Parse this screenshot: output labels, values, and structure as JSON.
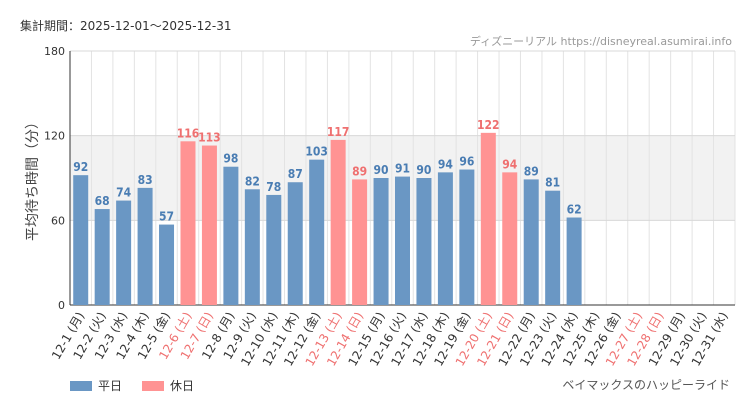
{
  "header": {
    "period": "集計期間：2025-12-01〜2025-12-31",
    "credit": "ディズニーリアル https://disneyreal.asumirai.info"
  },
  "footer": {
    "attraction": "ベイマックスのハッピーライド"
  },
  "legend": {
    "weekday_label": "平日",
    "holiday_label": "休日"
  },
  "colors": {
    "weekday": "#6a97c4",
    "holiday": "#ff9393",
    "weekday_text": "#4a7db3",
    "holiday_text": "#ef7070",
    "band": "#f2f2f2",
    "grid": "#e3e3e3"
  },
  "chart_data": {
    "type": "bar",
    "ylabel": "平均待ち時間（分）",
    "ylim": [
      0,
      180
    ],
    "yticks": [
      0,
      60,
      120,
      180
    ],
    "categories": [
      "12-1 (月)",
      "12-2 (火)",
      "12-3 (水)",
      "12-4 (木)",
      "12-5 (金)",
      "12-6 (土)",
      "12-7 (日)",
      "12-8 (月)",
      "12-9 (火)",
      "12-10 (水)",
      "12-11 (木)",
      "12-12 (金)",
      "12-13 (土)",
      "12-14 (日)",
      "12-15 (月)",
      "12-16 (火)",
      "12-17 (水)",
      "12-18 (木)",
      "12-19 (金)",
      "12-20 (土)",
      "12-21 (日)",
      "12-22 (月)",
      "12-23 (火)",
      "12-24 (水)",
      "12-25 (木)",
      "12-26 (金)",
      "12-27 (土)",
      "12-28 (日)",
      "12-29 (月)",
      "12-30 (火)",
      "12-31 (水)"
    ],
    "values": [
      92,
      68,
      74,
      83,
      57,
      116,
      113,
      98,
      82,
      78,
      87,
      103,
      117,
      89,
      90,
      91,
      90,
      94,
      96,
      122,
      94,
      89,
      81,
      62,
      null,
      null,
      null,
      null,
      null,
      null,
      null
    ],
    "holiday": [
      false,
      false,
      false,
      false,
      false,
      true,
      true,
      false,
      false,
      false,
      false,
      false,
      true,
      true,
      false,
      false,
      false,
      false,
      false,
      true,
      true,
      false,
      false,
      false,
      false,
      false,
      true,
      true,
      false,
      false,
      false
    ],
    "series": [
      {
        "name": "平日"
      },
      {
        "name": "休日"
      }
    ]
  }
}
